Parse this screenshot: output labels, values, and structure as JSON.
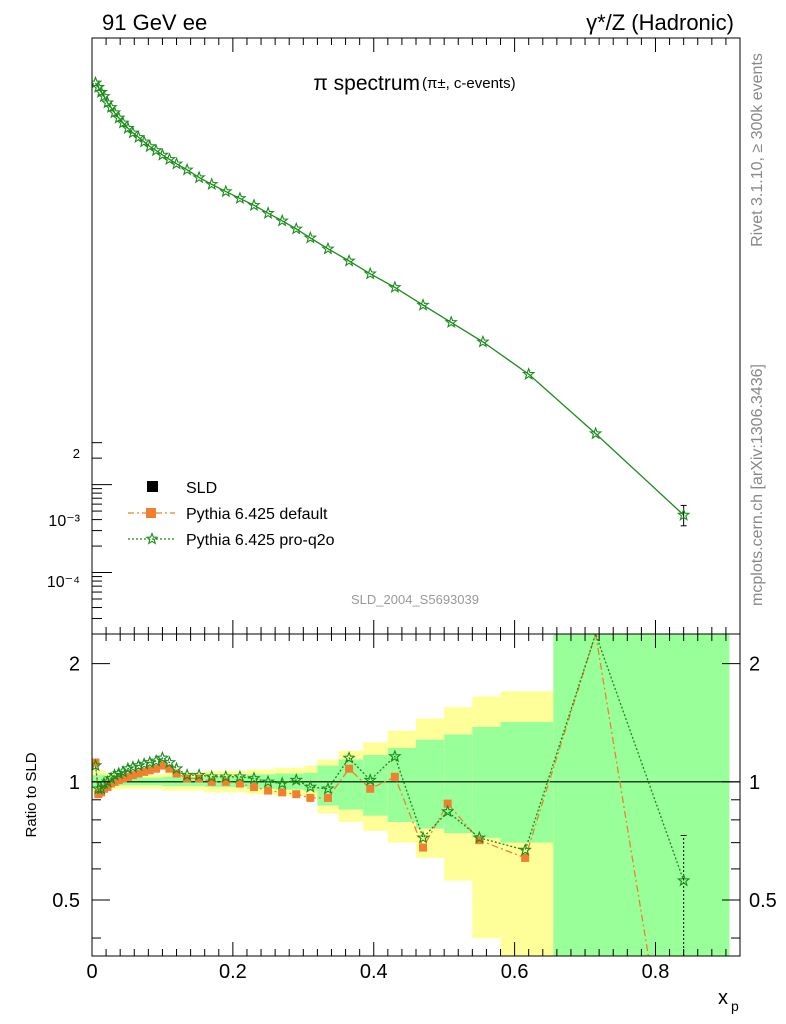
{
  "header": {
    "left": "91 GeV ee",
    "right": "γ*/Z (Hadronic)"
  },
  "side_labels": {
    "top": "Rivet 3.1.10, ≥ 300k events",
    "bottom": "mcplots.cern.ch [arXiv:1306.3436]"
  },
  "colors": {
    "default": "#f08030",
    "proq2o": "#1a8c1a",
    "band_inner": "#99ff99",
    "band_outer": "#ffff99"
  },
  "chart_data": [
    {
      "type": "line",
      "title": "π spectrum",
      "subtitle": "(π±, c-events)",
      "watermark": "SLD_2004_S5693039",
      "yscale": "log",
      "xlim": [
        0,
        0.92
      ],
      "ylim": [
        2e-05,
        120
      ],
      "y_tick_labels": [
        {
          "value": 0.0002,
          "label": "2"
        },
        {
          "value": 0.001,
          "label": "10⁻³"
        },
        {
          "value": 0.0001,
          "label": "10⁻⁴"
        }
      ],
      "legend": {
        "placement": "lower-left",
        "entries": [
          {
            "key": "sld",
            "label": "SLD"
          },
          {
            "key": "default",
            "label": "Pythia 6.425 default"
          },
          {
            "key": "proq2o",
            "label": "Pythia 6.425 pro-q2o"
          }
        ]
      },
      "series": [
        {
          "key": "proq2o",
          "x": [
            0.005,
            0.009,
            0.013,
            0.017,
            0.022,
            0.027,
            0.032,
            0.038,
            0.044,
            0.051,
            0.058,
            0.066,
            0.074,
            0.082,
            0.091,
            0.1,
            0.11,
            0.12,
            0.135,
            0.152,
            0.17,
            0.19,
            0.21,
            0.23,
            0.25,
            0.27,
            0.29,
            0.31,
            0.335,
            0.365,
            0.395,
            0.43,
            0.47,
            0.51,
            0.555,
            0.62,
            0.715,
            0.84
          ],
          "y": [
            37,
            33,
            29,
            26,
            22,
            19.5,
            17,
            14.8,
            13,
            11.3,
            10,
            8.9,
            7.9,
            7,
            6.3,
            5.6,
            5,
            4.45,
            3.8,
            3.1,
            2.6,
            2.15,
            1.8,
            1.5,
            1.22,
            1.0,
            0.81,
            0.64,
            0.48,
            0.35,
            0.25,
            0.175,
            0.11,
            0.07,
            0.042,
            0.018,
            0.0038,
            0.00045
          ],
          "last_point_error": [
            0.00034,
            0.00058
          ]
        }
      ]
    },
    {
      "type": "line",
      "ylabel": "Ratio to SLD",
      "xlabel": "x",
      "xlabel_sub": "p",
      "xlim": [
        0,
        0.92
      ],
      "ylim": [
        0.36,
        2.38
      ],
      "yscale": "log",
      "x_ticks": [
        0,
        0.2,
        0.4,
        0.6,
        0.8
      ],
      "x_tick_labels": [
        "0",
        "0.2",
        "0.4",
        "0.6",
        "0.8"
      ],
      "y_ticks": [
        0.5,
        1,
        2
      ],
      "y_tick_labels": [
        "0.5",
        "1",
        "2"
      ],
      "reference_line": 1,
      "bands": [
        {
          "x": [
            0,
            0.02
          ],
          "inner": [
            0.97,
            1.04
          ],
          "outer": [
            0.94,
            1.07
          ]
        },
        {
          "x": [
            0.02,
            0.04
          ],
          "inner": [
            0.975,
            1.03
          ],
          "outer": [
            0.955,
            1.05
          ]
        },
        {
          "x": [
            0.04,
            0.1
          ],
          "inner": [
            0.98,
            1.025
          ],
          "outer": [
            0.96,
            1.045
          ]
        },
        {
          "x": [
            0.1,
            0.16
          ],
          "inner": [
            0.975,
            1.03
          ],
          "outer": [
            0.95,
            1.055
          ]
        },
        {
          "x": [
            0.16,
            0.22
          ],
          "inner": [
            0.97,
            1.035
          ],
          "outer": [
            0.94,
            1.065
          ]
        },
        {
          "x": [
            0.22,
            0.26
          ],
          "inner": [
            0.96,
            1.045
          ],
          "outer": [
            0.93,
            1.075
          ]
        },
        {
          "x": [
            0.26,
            0.3
          ],
          "inner": [
            0.955,
            1.05
          ],
          "outer": [
            0.92,
            1.085
          ]
        },
        {
          "x": [
            0.3,
            0.32
          ],
          "inner": [
            0.95,
            1.055
          ],
          "outer": [
            0.91,
            1.1
          ]
        },
        {
          "x": [
            0.32,
            0.35
          ],
          "inner": [
            0.87,
            1.1
          ],
          "outer": [
            0.83,
            1.14
          ]
        },
        {
          "x": [
            0.35,
            0.385
          ],
          "inner": [
            0.85,
            1.14
          ],
          "outer": [
            0.79,
            1.2
          ]
        },
        {
          "x": [
            0.385,
            0.42
          ],
          "inner": [
            0.82,
            1.17
          ],
          "outer": [
            0.75,
            1.26
          ]
        },
        {
          "x": [
            0.42,
            0.46
          ],
          "inner": [
            0.79,
            1.22
          ],
          "outer": [
            0.7,
            1.35
          ]
        },
        {
          "x": [
            0.46,
            0.5
          ],
          "inner": [
            0.76,
            1.28
          ],
          "outer": [
            0.64,
            1.45
          ]
        },
        {
          "x": [
            0.5,
            0.54
          ],
          "inner": [
            0.74,
            1.32
          ],
          "outer": [
            0.56,
            1.55
          ]
        },
        {
          "x": [
            0.54,
            0.58
          ],
          "inner": [
            0.72,
            1.38
          ],
          "outer": [
            0.4,
            1.65
          ]
        },
        {
          "x": [
            0.58,
            0.655
          ],
          "inner": [
            0.7,
            1.42
          ],
          "outer": [
            0.36,
            1.7
          ]
        },
        {
          "x": [
            0.655,
            0.905
          ],
          "inner": [
            0.36,
            2.38
          ],
          "outer": [
            0.36,
            2.38
          ]
        }
      ],
      "series": [
        {
          "key": "default",
          "x": [
            0.005,
            0.009,
            0.013,
            0.017,
            0.022,
            0.027,
            0.032,
            0.038,
            0.044,
            0.051,
            0.058,
            0.066,
            0.074,
            0.082,
            0.091,
            0.1,
            0.11,
            0.12,
            0.135,
            0.152,
            0.17,
            0.19,
            0.21,
            0.23,
            0.25,
            0.27,
            0.29,
            0.31,
            0.335,
            0.365,
            0.395,
            0.43,
            0.47,
            0.505,
            0.55,
            0.615,
            0.715,
            0.79
          ],
          "y": [
            1.12,
            0.93,
            0.94,
            0.96,
            0.97,
            0.99,
            1.0,
            1.01,
            1.02,
            1.03,
            1.04,
            1.05,
            1.06,
            1.07,
            1.08,
            1.1,
            1.08,
            1.05,
            1.02,
            1.02,
            1.0,
            1.0,
            0.99,
            0.97,
            0.95,
            0.94,
            0.93,
            0.91,
            0.91,
            1.08,
            0.96,
            1.03,
            0.68,
            0.88,
            0.71,
            0.64,
            2.38,
            0.36
          ]
        },
        {
          "key": "proq2o",
          "x": [
            0.005,
            0.009,
            0.013,
            0.017,
            0.022,
            0.027,
            0.032,
            0.038,
            0.044,
            0.051,
            0.058,
            0.066,
            0.074,
            0.082,
            0.091,
            0.1,
            0.11,
            0.12,
            0.135,
            0.152,
            0.17,
            0.19,
            0.21,
            0.23,
            0.25,
            0.27,
            0.29,
            0.31,
            0.335,
            0.365,
            0.395,
            0.43,
            0.47,
            0.505,
            0.55,
            0.615,
            0.715,
            0.84
          ],
          "y": [
            1.1,
            0.96,
            0.96,
            0.99,
            1.0,
            1.02,
            1.04,
            1.05,
            1.06,
            1.08,
            1.09,
            1.1,
            1.11,
            1.12,
            1.13,
            1.15,
            1.12,
            1.08,
            1.04,
            1.04,
            1.03,
            1.03,
            1.03,
            1.02,
            1.0,
            0.99,
            1.01,
            0.97,
            0.96,
            1.15,
            1.01,
            1.16,
            0.72,
            0.84,
            0.72,
            0.67,
            2.38,
            0.56
          ],
          "last_point_error": [
            0.36,
            0.73
          ]
        }
      ]
    }
  ]
}
